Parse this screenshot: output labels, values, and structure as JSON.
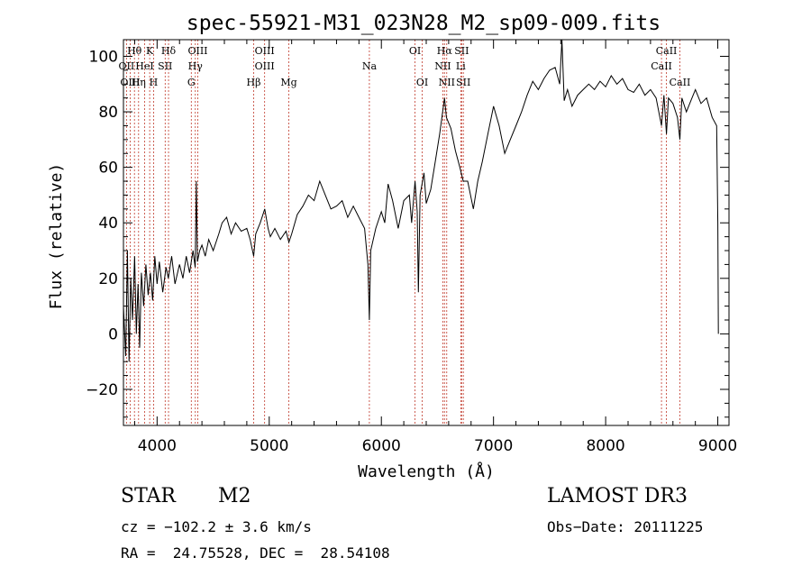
{
  "chart_data": {
    "type": "line",
    "title": "spec-55921-M31_023N28_M2_sp09-009.fits",
    "xlabel": "Wavelength (Å)",
    "ylabel": "Flux (relative)",
    "xlim": [
      3700,
      9100
    ],
    "ylim": [
      -33,
      106
    ],
    "xticks": [
      4000,
      5000,
      6000,
      7000,
      8000,
      9000
    ],
    "yticks": [
      -20,
      0,
      20,
      40,
      60,
      80,
      100
    ],
    "series": [
      {
        "name": "flux",
        "points": [
          [
            3700,
            10
          ],
          [
            3720,
            -8
          ],
          [
            3735,
            30
          ],
          [
            3750,
            -10
          ],
          [
            3765,
            20
          ],
          [
            3780,
            5
          ],
          [
            3800,
            28
          ],
          [
            3815,
            0
          ],
          [
            3830,
            18
          ],
          [
            3845,
            -5
          ],
          [
            3860,
            22
          ],
          [
            3880,
            10
          ],
          [
            3900,
            25
          ],
          [
            3920,
            14
          ],
          [
            3940,
            22
          ],
          [
            3960,
            12
          ],
          [
            3980,
            28
          ],
          [
            4000,
            18
          ],
          [
            4020,
            26
          ],
          [
            4050,
            15
          ],
          [
            4080,
            24
          ],
          [
            4100,
            20
          ],
          [
            4130,
            28
          ],
          [
            4160,
            18
          ],
          [
            4200,
            25
          ],
          [
            4230,
            20
          ],
          [
            4260,
            28
          ],
          [
            4290,
            22
          ],
          [
            4320,
            30
          ],
          [
            4340,
            24
          ],
          [
            4350,
            55
          ],
          [
            4360,
            26
          ],
          [
            4380,
            30
          ],
          [
            4400,
            32
          ],
          [
            4430,
            28
          ],
          [
            4460,
            34
          ],
          [
            4500,
            30
          ],
          [
            4550,
            36
          ],
          [
            4580,
            40
          ],
          [
            4620,
            42
          ],
          [
            4660,
            36
          ],
          [
            4700,
            40
          ],
          [
            4750,
            37
          ],
          [
            4800,
            38
          ],
          [
            4830,
            34
          ],
          [
            4861,
            28
          ],
          [
            4880,
            36
          ],
          [
            4920,
            40
          ],
          [
            4960,
            45
          ],
          [
            4990,
            38
          ],
          [
            5010,
            35
          ],
          [
            5050,
            38
          ],
          [
            5100,
            34
          ],
          [
            5150,
            37
          ],
          [
            5175,
            33
          ],
          [
            5200,
            36
          ],
          [
            5250,
            43
          ],
          [
            5300,
            46
          ],
          [
            5350,
            50
          ],
          [
            5400,
            48
          ],
          [
            5450,
            55
          ],
          [
            5500,
            50
          ],
          [
            5550,
            45
          ],
          [
            5600,
            46
          ],
          [
            5650,
            48
          ],
          [
            5700,
            42
          ],
          [
            5750,
            46
          ],
          [
            5800,
            42
          ],
          [
            5850,
            38
          ],
          [
            5880,
            25
          ],
          [
            5893,
            5
          ],
          [
            5905,
            30
          ],
          [
            5950,
            38
          ],
          [
            6000,
            44
          ],
          [
            6030,
            40
          ],
          [
            6060,
            54
          ],
          [
            6100,
            48
          ],
          [
            6150,
            38
          ],
          [
            6200,
            48
          ],
          [
            6250,
            50
          ],
          [
            6270,
            40
          ],
          [
            6300,
            55
          ],
          [
            6320,
            44
          ],
          [
            6330,
            15
          ],
          [
            6345,
            50
          ],
          [
            6380,
            58
          ],
          [
            6400,
            47
          ],
          [
            6440,
            52
          ],
          [
            6480,
            62
          ],
          [
            6520,
            72
          ],
          [
            6563,
            85
          ],
          [
            6580,
            78
          ],
          [
            6620,
            74
          ],
          [
            6660,
            66
          ],
          [
            6700,
            60
          ],
          [
            6730,
            55
          ],
          [
            6770,
            55
          ],
          [
            6820,
            45
          ],
          [
            6860,
            55
          ],
          [
            6900,
            62
          ],
          [
            6950,
            72
          ],
          [
            7000,
            82
          ],
          [
            7050,
            75
          ],
          [
            7100,
            65
          ],
          [
            7150,
            70
          ],
          [
            7200,
            75
          ],
          [
            7250,
            80
          ],
          [
            7300,
            86
          ],
          [
            7350,
            91
          ],
          [
            7400,
            88
          ],
          [
            7450,
            92
          ],
          [
            7500,
            95
          ],
          [
            7550,
            96
          ],
          [
            7590,
            90
          ],
          [
            7610,
            107
          ],
          [
            7630,
            84
          ],
          [
            7660,
            88
          ],
          [
            7700,
            82
          ],
          [
            7750,
            86
          ],
          [
            7800,
            88
          ],
          [
            7850,
            90
          ],
          [
            7900,
            88
          ],
          [
            7950,
            91
          ],
          [
            8000,
            89
          ],
          [
            8050,
            93
          ],
          [
            8100,
            90
          ],
          [
            8150,
            92
          ],
          [
            8200,
            88
          ],
          [
            8250,
            87
          ],
          [
            8300,
            90
          ],
          [
            8350,
            86
          ],
          [
            8400,
            88
          ],
          [
            8450,
            85
          ],
          [
            8498,
            75
          ],
          [
            8520,
            86
          ],
          [
            8542,
            72
          ],
          [
            8560,
            85
          ],
          [
            8600,
            83
          ],
          [
            8640,
            78
          ],
          [
            8662,
            70
          ],
          [
            8680,
            85
          ],
          [
            8720,
            80
          ],
          [
            8760,
            84
          ],
          [
            8800,
            88
          ],
          [
            8850,
            83
          ],
          [
            8900,
            85
          ],
          [
            8950,
            78
          ],
          [
            8990,
            75
          ],
          [
            9000,
            40
          ],
          [
            9005,
            0
          ]
        ]
      }
    ],
    "line_markers": [
      {
        "label": "Hθ",
        "wave": 3798,
        "row": 0
      },
      {
        "label": "OII",
        "wave": 3727,
        "row": 1
      },
      {
        "label": "OIII",
        "wave": 3760,
        "row": 2
      },
      {
        "label": "K",
        "wave": 3934,
        "row": 0
      },
      {
        "label": "HeI",
        "wave": 3889,
        "row": 1
      },
      {
        "label": "Hη",
        "wave": 3835,
        "row": 2
      },
      {
        "label": "H",
        "wave": 3969,
        "row": 2
      },
      {
        "label": "SII",
        "wave": 4072,
        "row": 1
      },
      {
        "label": "Hδ",
        "wave": 4102,
        "row": 0
      },
      {
        "label": "OIII",
        "wave": 4363,
        "row": 0
      },
      {
        "label": "Hγ",
        "wave": 4341,
        "row": 1
      },
      {
        "label": "G",
        "wave": 4305,
        "row": 2
      },
      {
        "label": "OIII",
        "wave": 4959,
        "row": 0
      },
      {
        "label": "OIII",
        "wave": 4959,
        "row": 1
      },
      {
        "label": "Hβ",
        "wave": 4861,
        "row": 2
      },
      {
        "label": "Mg",
        "wave": 5175,
        "row": 2
      },
      {
        "label": "Na",
        "wave": 5893,
        "row": 1
      },
      {
        "label": "OI",
        "wave": 6300,
        "row": 0
      },
      {
        "label": "OI",
        "wave": 6364,
        "row": 2
      },
      {
        "label": "Hα",
        "wave": 6563,
        "row": 0
      },
      {
        "label": "NII",
        "wave": 6548,
        "row": 1
      },
      {
        "label": "NII",
        "wave": 6583,
        "row": 2
      },
      {
        "label": "SII",
        "wave": 6716,
        "row": 0
      },
      {
        "label": "Li",
        "wave": 6708,
        "row": 1
      },
      {
        "label": "SII",
        "wave": 6731,
        "row": 2
      },
      {
        "label": "CaII",
        "wave": 8542,
        "row": 0
      },
      {
        "label": "CaII",
        "wave": 8498,
        "row": 1
      },
      {
        "label": "CaII",
        "wave": 8662,
        "row": 2
      }
    ]
  },
  "info": {
    "object_class": "STAR",
    "subclass": "M2",
    "survey": "LAMOST DR3",
    "cz": "cz = −102.2 ± 3.6 km/s",
    "obs_date": "Obs−Date: 20111225",
    "coords": "RA =  24.75528, DEC =  28.54108"
  },
  "colors": {
    "marker": "#c0392b",
    "ink": "#000000"
  }
}
